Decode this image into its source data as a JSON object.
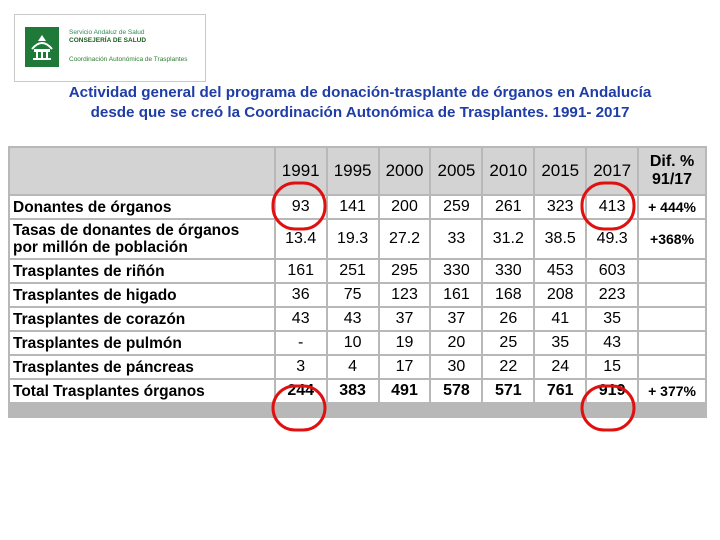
{
  "logo": {
    "line1": "Servicio Andaluz de Salud",
    "line2": "CONSEJERÍA DE SALUD",
    "line3": "Coordinación Autonómica de Trasplantes",
    "emblem_icon": "junta-andalucia-emblem-icon",
    "color": "#1f7a3a"
  },
  "title": {
    "line1": "Actividad general del programa de donación-trasplante de órganos en Andalucía",
    "line2": "desde que se creó la Coordinación Autonómica de Trasplantes. 1991- 2017",
    "color": "#1f3da6"
  },
  "table": {
    "headers": [
      "1991",
      "1995",
      "2000",
      "2005",
      "2010",
      "2015",
      "2017"
    ],
    "dif_header_line1": "Dif. %",
    "dif_header_line2": "91/17",
    "rows": [
      {
        "label": "Donantes de órganos",
        "values": [
          "93",
          "141",
          "200",
          "259",
          "261",
          "323",
          "413"
        ],
        "dif": "+ 444%"
      },
      {
        "label_line1": "Tasas de donantes de órganos",
        "label_line2": "por millón de población",
        "values": [
          "13.4",
          "19.3",
          "27.2",
          "33",
          "31.2",
          "38.5",
          "49.3"
        ],
        "dif": "+368%"
      },
      {
        "label": "Trasplantes de riñón",
        "values": [
          "161",
          "251",
          "295",
          "330",
          "330",
          "453",
          "603"
        ],
        "dif": ""
      },
      {
        "label": "Trasplantes de higado",
        "values": [
          "36",
          "75",
          "123",
          "161",
          "168",
          "208",
          "223"
        ],
        "dif": ""
      },
      {
        "label": "Trasplantes de corazón",
        "values": [
          "43",
          "43",
          "37",
          "37",
          "26",
          "41",
          "35"
        ],
        "dif": ""
      },
      {
        "label": "Trasplantes de pulmón",
        "values": [
          "-",
          "10",
          "19",
          "20",
          "25",
          "35",
          "43"
        ],
        "dif": ""
      },
      {
        "label": "Trasplantes de páncreas",
        "values": [
          "3",
          "4",
          "17",
          "30",
          "22",
          "24",
          "15"
        ],
        "dif": ""
      },
      {
        "label": "Total Trasplantes órganos",
        "values": [
          "244",
          "383",
          "491",
          "578",
          "571",
          "761",
          "919"
        ],
        "dif": "+ 377%"
      }
    ],
    "highlight_color": "#e01010"
  }
}
